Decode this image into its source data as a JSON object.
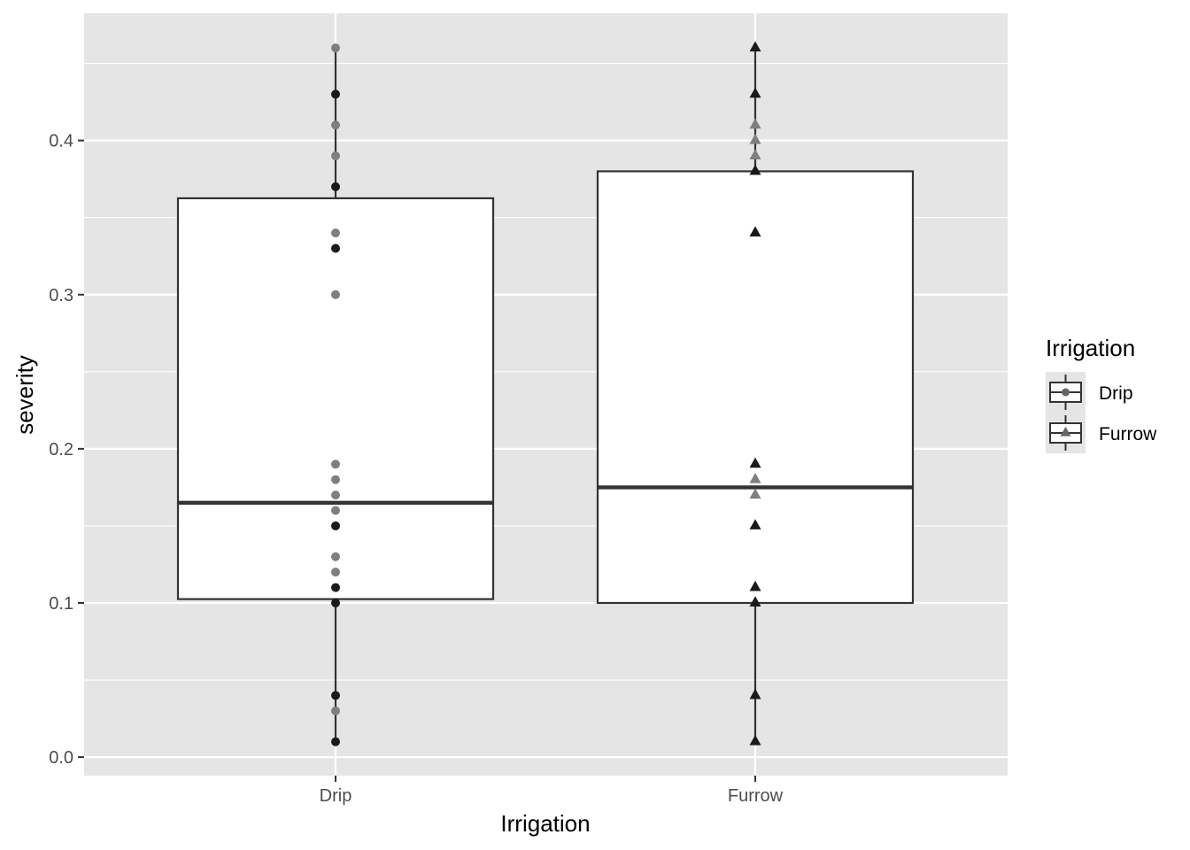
{
  "chart_data": {
    "type": "box",
    "xlabel": "Irrigation",
    "ylabel": "severity",
    "ylim": [
      -0.012,
      0.4825
    ],
    "yticks": [
      0.0,
      0.1,
      0.2,
      0.3,
      0.4
    ],
    "ytick_labels": [
      "0.0",
      "0.1",
      "0.2",
      "0.3",
      "0.4"
    ],
    "categories": [
      "Drip",
      "Furrow"
    ],
    "grid": true,
    "legend": {
      "title": "Irrigation",
      "placement": "right",
      "entries": [
        {
          "label": "Drip",
          "shape": "circle"
        },
        {
          "label": "Furrow",
          "shape": "triangle"
        }
      ]
    },
    "boxes": [
      {
        "category": "Drip",
        "whisker_low": 0.01,
        "q1": 0.1025,
        "median": 0.165,
        "q3": 0.3625,
        "whisker_high": 0.46
      },
      {
        "category": "Furrow",
        "whisker_low": 0.01,
        "q1": 0.1,
        "median": 0.175,
        "q3": 0.38,
        "whisker_high": 0.46
      }
    ],
    "series": [
      {
        "name": "Drip",
        "shape": "circle",
        "points": [
          0.46,
          0.43,
          0.41,
          0.39,
          0.37,
          0.34,
          0.33,
          0.3,
          0.19,
          0.18,
          0.17,
          0.16,
          0.15,
          0.13,
          0.12,
          0.11,
          0.1,
          0.04,
          0.03,
          0.01
        ],
        "dark": [
          false,
          true,
          false,
          false,
          true,
          false,
          true,
          false,
          false,
          false,
          false,
          false,
          true,
          false,
          false,
          true,
          true,
          true,
          false,
          true
        ]
      },
      {
        "name": "Furrow",
        "shape": "triangle",
        "points": [
          0.46,
          0.43,
          0.41,
          0.4,
          0.39,
          0.38,
          0.34,
          0.19,
          0.18,
          0.17,
          0.15,
          0.11,
          0.1,
          0.04,
          0.01
        ],
        "dark": [
          true,
          true,
          false,
          false,
          false,
          true,
          true,
          true,
          false,
          false,
          true,
          true,
          true,
          true,
          true
        ]
      }
    ],
    "colors": {
      "panel": "#e5e5e5",
      "grid_major": "#ffffff",
      "box_fill": "#ffffff",
      "box_line": "#333333",
      "point_dark": "#1a1a1a",
      "point_light": "#7f7f7f"
    }
  }
}
